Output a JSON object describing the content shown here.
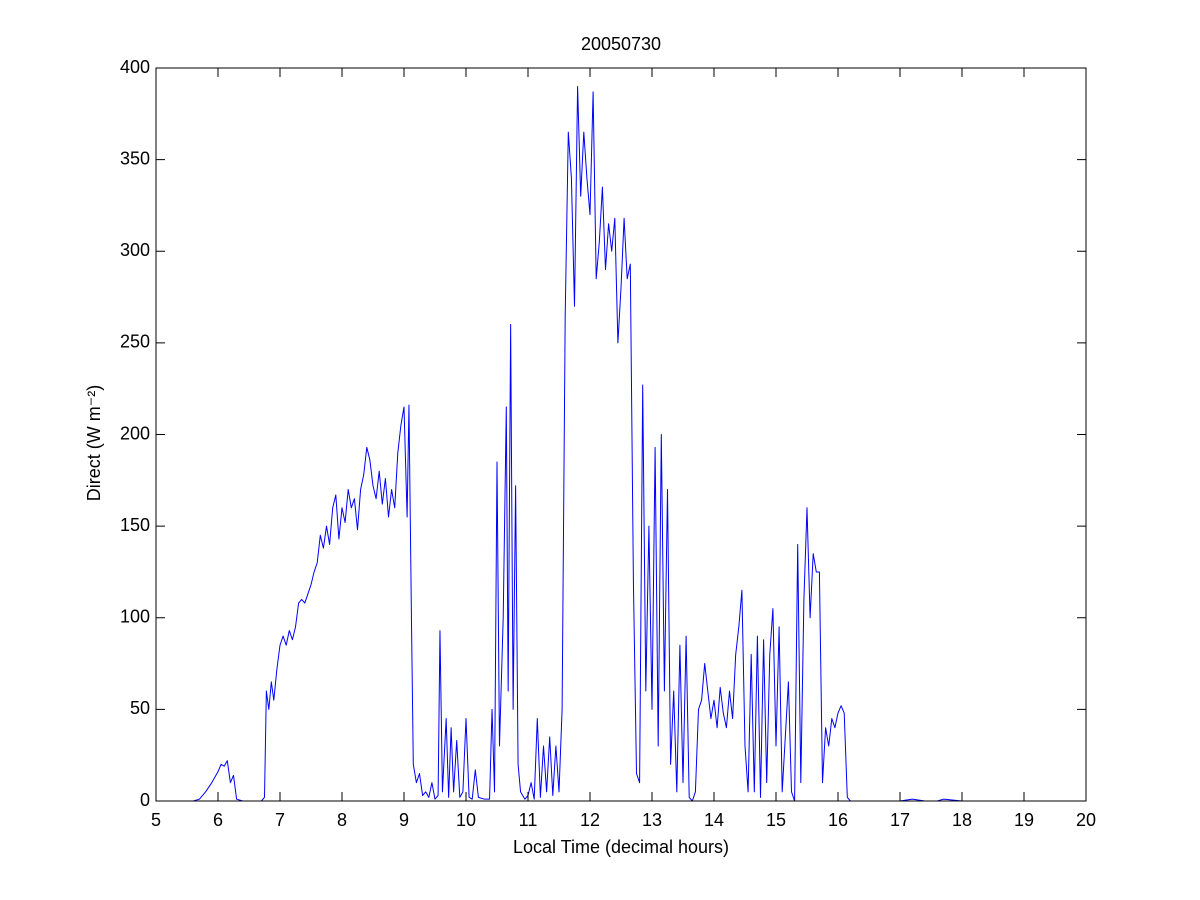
{
  "chart_data": {
    "type": "line",
    "title": "20050730",
    "xlabel": "Local Time (decimal hours)",
    "ylabel": "Direct (W m⁻²)",
    "color": "#0000ff",
    "xlim": [
      5,
      20
    ],
    "xticks": [
      5,
      6,
      7,
      8,
      9,
      10,
      11,
      12,
      13,
      14,
      15,
      16,
      17,
      18,
      19,
      20
    ],
    "ylim": [
      0,
      400
    ],
    "yticks": [
      0,
      50,
      100,
      150,
      200,
      250,
      300,
      350,
      400
    ],
    "x": [
      5.5,
      5.6,
      5.7,
      5.8,
      5.9,
      6.0,
      6.05,
      6.1,
      6.15,
      6.2,
      6.25,
      6.3,
      6.4,
      6.5,
      6.6,
      6.7,
      6.75,
      6.78,
      6.82,
      6.86,
      6.9,
      6.95,
      7.0,
      7.05,
      7.1,
      7.15,
      7.2,
      7.25,
      7.3,
      7.35,
      7.4,
      7.45,
      7.5,
      7.55,
      7.6,
      7.65,
      7.7,
      7.75,
      7.8,
      7.85,
      7.9,
      7.95,
      8.0,
      8.05,
      8.1,
      8.15,
      8.2,
      8.25,
      8.3,
      8.35,
      8.4,
      8.45,
      8.5,
      8.55,
      8.6,
      8.65,
      8.7,
      8.75,
      8.8,
      8.85,
      8.9,
      8.95,
      9.0,
      9.05,
      9.08,
      9.12,
      9.15,
      9.2,
      9.25,
      9.3,
      9.35,
      9.4,
      9.45,
      9.5,
      9.55,
      9.58,
      9.62,
      9.68,
      9.72,
      9.76,
      9.8,
      9.85,
      9.9,
      9.95,
      10.0,
      10.05,
      10.1,
      10.15,
      10.2,
      10.3,
      10.38,
      10.42,
      10.46,
      10.5,
      10.54,
      10.6,
      10.65,
      10.68,
      10.72,
      10.76,
      10.8,
      10.84,
      10.88,
      10.95,
      11.0,
      11.05,
      11.1,
      11.15,
      11.2,
      11.25,
      11.3,
      11.35,
      11.4,
      11.45,
      11.5,
      11.55,
      11.6,
      11.65,
      11.7,
      11.75,
      11.8,
      11.85,
      11.9,
      11.95,
      12.0,
      12.05,
      12.1,
      12.15,
      12.2,
      12.25,
      12.3,
      12.35,
      12.4,
      12.45,
      12.5,
      12.55,
      12.6,
      12.65,
      12.7,
      12.75,
      12.8,
      12.85,
      12.9,
      12.95,
      13.0,
      13.05,
      13.1,
      13.15,
      13.2,
      13.25,
      13.3,
      13.35,
      13.4,
      13.45,
      13.5,
      13.55,
      13.6,
      13.65,
      13.7,
      13.75,
      13.8,
      13.85,
      13.9,
      13.95,
      14.0,
      14.05,
      14.1,
      14.15,
      14.2,
      14.25,
      14.3,
      14.35,
      14.4,
      14.45,
      14.5,
      14.55,
      14.6,
      14.65,
      14.7,
      14.75,
      14.8,
      14.85,
      14.9,
      14.95,
      15.0,
      15.05,
      15.1,
      15.15,
      15.2,
      15.25,
      15.3,
      15.35,
      15.4,
      15.45,
      15.5,
      15.55,
      15.6,
      15.65,
      15.7,
      15.75,
      15.8,
      15.85,
      15.9,
      15.95,
      16.0,
      16.05,
      16.1,
      16.15,
      16.2,
      16.5,
      17.0,
      17.2,
      17.4,
      17.6,
      17.7,
      18.0,
      18.5,
      19.0
    ],
    "values": [
      0,
      0,
      1,
      5,
      10,
      16,
      20,
      19,
      22,
      10,
      14,
      1,
      0,
      0,
      0,
      0,
      2,
      60,
      50,
      65,
      55,
      72,
      85,
      90,
      85,
      93,
      88,
      95,
      108,
      110,
      108,
      113,
      118,
      125,
      130,
      145,
      138,
      150,
      140,
      160,
      167,
      143,
      160,
      152,
      170,
      160,
      165,
      148,
      170,
      178,
      193,
      186,
      172,
      165,
      180,
      162,
      176,
      155,
      170,
      160,
      190,
      205,
      215,
      155,
      216,
      100,
      20,
      10,
      15,
      3,
      5,
      2,
      10,
      1,
      3,
      93,
      5,
      45,
      2,
      40,
      5,
      33,
      2,
      5,
      45,
      2,
      1,
      17,
      2,
      1,
      1,
      50,
      5,
      185,
      30,
      100,
      215,
      60,
      260,
      50,
      172,
      20,
      5,
      1,
      3,
      10,
      1,
      45,
      2,
      30,
      5,
      35,
      3,
      30,
      5,
      50,
      265,
      365,
      340,
      270,
      390,
      330,
      365,
      340,
      320,
      387,
      285,
      305,
      335,
      290,
      315,
      300,
      318,
      250,
      280,
      318,
      285,
      293,
      120,
      15,
      10,
      227,
      60,
      150,
      50,
      193,
      30,
      200,
      60,
      170,
      20,
      60,
      5,
      85,
      10,
      90,
      2,
      0,
      5,
      50,
      55,
      75,
      60,
      45,
      55,
      40,
      62,
      48,
      40,
      60,
      45,
      80,
      95,
      115,
      30,
      5,
      80,
      5,
      90,
      2,
      88,
      10,
      80,
      105,
      30,
      95,
      5,
      35,
      65,
      5,
      0,
      140,
      10,
      110,
      160,
      100,
      135,
      125,
      125,
      10,
      40,
      30,
      45,
      40,
      48,
      52,
      48,
      2,
      0,
      0,
      0,
      1,
      0,
      0,
      1,
      0,
      0,
      0
    ]
  }
}
